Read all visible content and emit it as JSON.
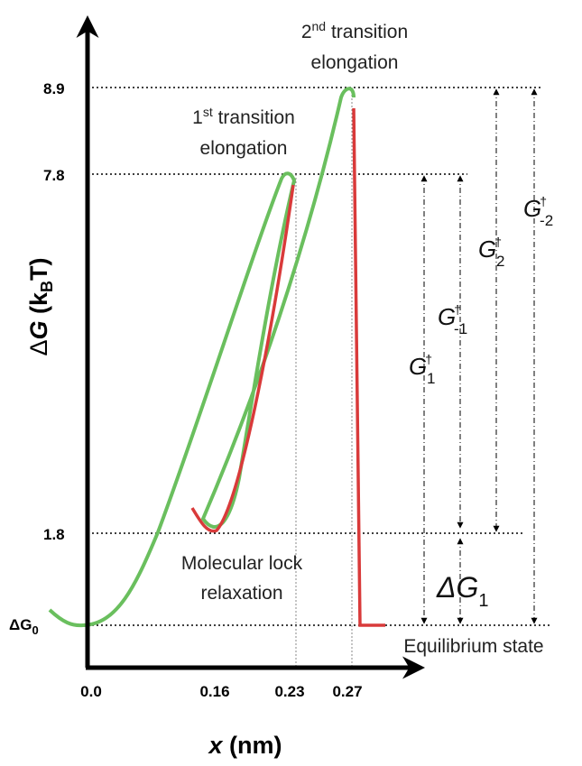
{
  "y_axis": {
    "label": {
      "delta": "Δ",
      "symbol": "G",
      "open": "(k",
      "sub": "B",
      "close": "T)"
    },
    "ticks": [
      "8.9",
      "7.8",
      "1.8",
      {
        "main": "ΔG",
        "sub": "0"
      }
    ]
  },
  "x_axis": {
    "label": {
      "symbol": "x",
      "unit": "(nm)"
    },
    "ticks": [
      "0.0",
      "0.16",
      "0.23",
      "0.27"
    ]
  },
  "annotations": {
    "second": {
      "num": "2",
      "sup": "nd",
      "line1": "transition",
      "line2": "elongation"
    },
    "first": {
      "num": "1",
      "sup": "st",
      "line1": "transition",
      "line2": "elongation"
    },
    "lock": {
      "line1": "Molecular lock",
      "line2": "relaxation"
    },
    "equilibrium": "Equilibrium state"
  },
  "barriers": [
    {
      "symbol": "G",
      "sup": "†",
      "sub": "-2"
    },
    {
      "symbol": "G",
      "sup": "†",
      "sub": "2"
    },
    {
      "symbol": "G",
      "sup": "†",
      "sub": "-1"
    },
    {
      "symbol": "G",
      "sup": "†",
      "sub": "1"
    },
    {
      "symbol": "ΔG",
      "sub": "1"
    }
  ]
}
